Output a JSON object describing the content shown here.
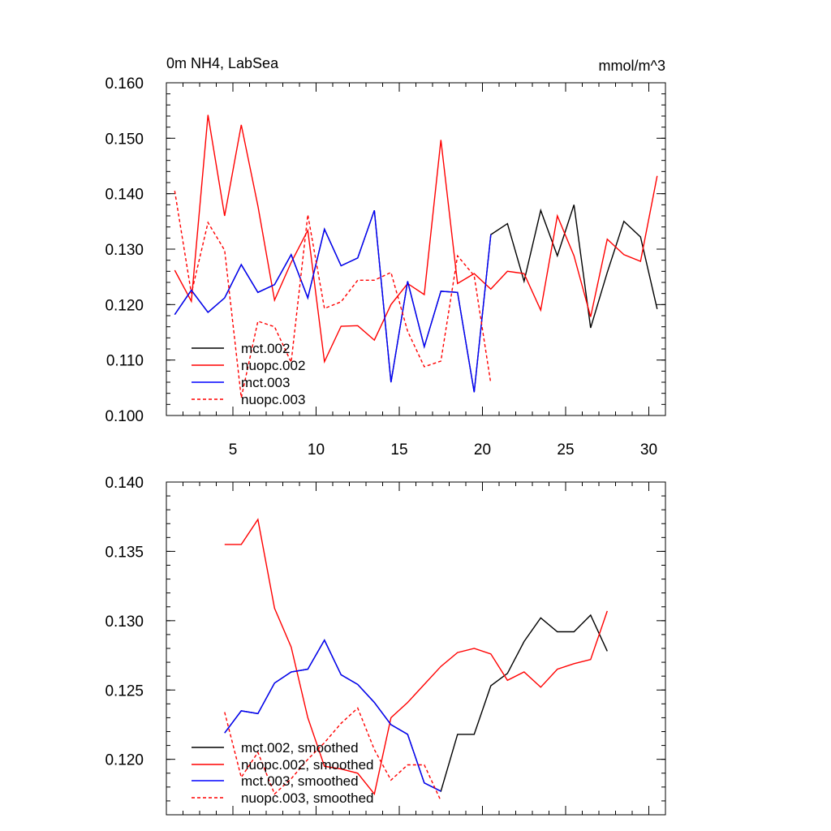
{
  "chart_data": [
    {
      "type": "line",
      "title_left": "0m NH4, LabSea",
      "title_right": "mmol/m^3",
      "xlabel": "",
      "ylabel": "",
      "xlim": [
        1,
        31
      ],
      "ylim": [
        0.1,
        0.16
      ],
      "x_ticks": [
        "5",
        "10",
        "15",
        "20",
        "25",
        "30"
      ],
      "y_ticks": [
        "0.100",
        "0.110",
        "0.120",
        "0.130",
        "0.140",
        "0.150",
        "0.160"
      ],
      "legend_position": "bottom-left",
      "series": [
        {
          "name": "mct.002",
          "color": "#000000",
          "dash": "solid",
          "x": [
            1.5,
            2.5,
            3.5,
            4.5,
            5.5,
            6.5,
            7.5,
            8.5,
            9.5,
            10.5,
            11.5,
            12.5,
            13.5,
            14.5,
            15.5,
            16.5,
            17.5,
            18.5,
            19.5,
            20.5,
            21.5,
            22.5,
            23.5,
            24.5,
            25.5,
            26.5,
            27.5,
            28.5,
            29.5,
            30.5
          ],
          "values": [
            0.1182,
            0.1226,
            0.1186,
            0.1212,
            0.1272,
            0.1222,
            0.1236,
            0.129,
            0.1212,
            0.1336,
            0.127,
            0.1284,
            0.137,
            0.106,
            0.1242,
            0.1124,
            0.1224,
            0.1222,
            0.1042,
            0.1326,
            0.1346,
            0.1242,
            0.137,
            0.1288,
            0.138,
            0.1158,
            0.1258,
            0.135,
            0.1322,
            0.1192
          ]
        },
        {
          "name": "nuopc.002",
          "color": "#ff0000",
          "dash": "solid",
          "x": [
            1.5,
            2.5,
            3.5,
            4.5,
            5.5,
            6.5,
            7.5,
            8.5,
            9.5,
            10.5,
            11.5,
            12.5,
            13.5,
            14.5,
            15.5,
            16.5,
            17.5,
            18.5,
            19.5,
            20.5,
            21.5,
            22.5,
            23.5,
            24.5,
            25.5,
            26.5,
            27.5,
            28.5,
            29.5,
            30.5
          ],
          "values": [
            0.1262,
            0.1206,
            0.1542,
            0.136,
            0.1524,
            0.1378,
            0.1208,
            0.1276,
            0.1334,
            0.1097,
            0.1161,
            0.1162,
            0.1136,
            0.12,
            0.1238,
            0.1218,
            0.1497,
            0.1238,
            0.1256,
            0.1228,
            0.126,
            0.1256,
            0.119,
            0.136,
            0.1288,
            0.1178,
            0.1318,
            0.129,
            0.1278,
            0.1432
          ]
        },
        {
          "name": "mct.003",
          "color": "#0000ff",
          "dash": "solid",
          "x": [
            1.5,
            2.5,
            3.5,
            4.5,
            5.5,
            6.5,
            7.5,
            8.5,
            9.5,
            10.5,
            11.5,
            12.5,
            13.5,
            14.5,
            15.5,
            16.5,
            17.5,
            18.5,
            19.5,
            20.5
          ],
          "values": [
            0.1182,
            0.1226,
            0.1186,
            0.1212,
            0.1272,
            0.1222,
            0.1236,
            0.129,
            0.1212,
            0.1336,
            0.127,
            0.1284,
            0.137,
            0.106,
            0.1242,
            0.1124,
            0.1224,
            0.1222,
            0.1042,
            0.1326
          ]
        },
        {
          "name": "nuopc.003",
          "color": "#ff0000",
          "dash": "dashed",
          "x": [
            1.5,
            2.5,
            3.5,
            4.5,
            5.5,
            6.5,
            7.5,
            8.5,
            9.5,
            10.5,
            11.5,
            12.5,
            13.5,
            14.5,
            15.5,
            16.5,
            17.5,
            18.5,
            19.5,
            20.5
          ],
          "values": [
            0.1405,
            0.122,
            0.1348,
            0.1298,
            0.1032,
            0.117,
            0.116,
            0.1096,
            0.1362,
            0.1193,
            0.1205,
            0.1244,
            0.1244,
            0.1258,
            0.1152,
            0.1088,
            0.1098,
            0.1288,
            0.1252,
            0.1058
          ]
        }
      ]
    },
    {
      "type": "line",
      "title_left": "",
      "title_right": "",
      "xlabel": "",
      "ylabel": "",
      "xlim": [
        1,
        31
      ],
      "ylim": [
        0.116,
        0.14
      ],
      "x_ticks": [],
      "y_ticks": [
        "0.120",
        "0.125",
        "0.130",
        "0.135",
        "0.140"
      ],
      "legend_position": "bottom-left",
      "series": [
        {
          "name": "mct.002, smoothed",
          "color": "#000000",
          "dash": "solid",
          "x": [
            4.5,
            5.5,
            6.5,
            7.5,
            8.5,
            9.5,
            10.5,
            11.5,
            12.5,
            13.5,
            14.5,
            15.5,
            16.5,
            17.5,
            18.5,
            19.5,
            20.5,
            21.5,
            22.5,
            23.5,
            24.5,
            25.5,
            26.5,
            27.5
          ],
          "values": [
            0.1219,
            0.1235,
            0.1233,
            0.1255,
            0.1263,
            0.1265,
            0.1286,
            0.1261,
            0.1254,
            0.1241,
            0.1225,
            0.1218,
            0.1183,
            0.1177,
            0.1218,
            0.1218,
            0.1253,
            0.1262,
            0.1285,
            0.1302,
            0.1292,
            0.1292,
            0.1304,
            0.1278
          ]
        },
        {
          "name": "nuopc.002, smoothed",
          "color": "#ff0000",
          "dash": "solid",
          "x": [
            4.5,
            5.5,
            6.5,
            7.5,
            8.5,
            9.5,
            10.5,
            11.5,
            12.5,
            13.5,
            14.5,
            15.5,
            16.5,
            17.5,
            18.5,
            19.5,
            20.5,
            21.5,
            22.5,
            23.5,
            24.5,
            25.5,
            26.5,
            27.5
          ],
          "values": [
            0.1355,
            0.1355,
            0.1373,
            0.1309,
            0.1281,
            0.123,
            0.1195,
            0.1193,
            0.119,
            0.1175,
            0.123,
            0.1241,
            0.1254,
            0.1267,
            0.1277,
            0.128,
            0.1276,
            0.1257,
            0.1263,
            0.1252,
            0.1265,
            0.1269,
            0.1272,
            0.1307
          ]
        },
        {
          "name": "mct.003, smoothed",
          "color": "#0000ff",
          "dash": "solid",
          "x": [
            4.5,
            5.5,
            6.5,
            7.5,
            8.5,
            9.5,
            10.5,
            11.5,
            12.5,
            13.5,
            14.5,
            15.5,
            16.5,
            17.5
          ],
          "values": [
            0.1219,
            0.1235,
            0.1233,
            0.1255,
            0.1263,
            0.1265,
            0.1286,
            0.1261,
            0.1254,
            0.1241,
            0.1225,
            0.1218,
            0.1183,
            0.1177
          ]
        },
        {
          "name": "nuopc.003, smoothed",
          "color": "#ff0000",
          "dash": "dashed",
          "x": [
            4.5,
            5.5,
            6.5,
            7.5,
            8.5,
            9.5,
            10.5,
            11.5,
            12.5,
            13.5,
            14.5,
            15.5,
            16.5,
            17.5
          ],
          "values": [
            0.1234,
            0.1187,
            0.1205,
            0.1175,
            0.1186,
            0.12,
            0.1212,
            0.1226,
            0.1237,
            0.1207,
            0.1185,
            0.1196,
            0.1196,
            0.117
          ]
        }
      ]
    }
  ]
}
